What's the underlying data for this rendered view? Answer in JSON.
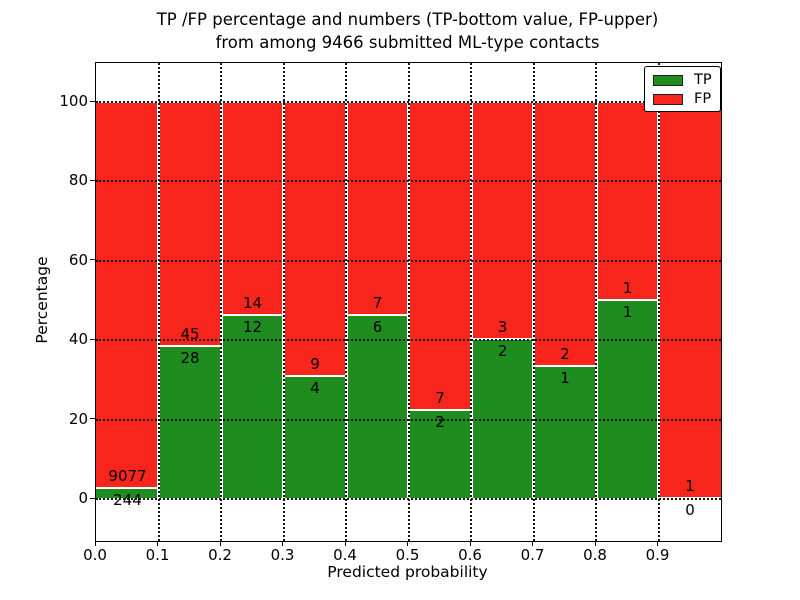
{
  "figure": {
    "title_line1": "TP /FP percentage and numbers (TP-bottom value, FP-upper)",
    "title_line2": "from among 9466 submitted ML-type contacts",
    "xlabel": "Predicted probability",
    "ylabel": "Percentage"
  },
  "legend": {
    "items": [
      {
        "label": "TP",
        "color": "#1e8c1e"
      },
      {
        "label": "FP",
        "color": "#f8251d"
      }
    ]
  },
  "colors": {
    "tp_green": "#1e8c1e",
    "fp_red": "#f8251d",
    "grid": "#000000",
    "background": "#ffffff"
  },
  "chart_data": {
    "type": "bar",
    "subtype": "stacked-percentage-histogram",
    "title": "TP /FP percentage and numbers (TP-bottom value, FP-upper) from among 9466 submitted ML-type contacts",
    "xlabel": "Predicted probability",
    "ylabel": "Percentage",
    "grid": "dotted",
    "legend_position": "upper-right",
    "xlim": [
      0.0,
      1.0
    ],
    "ylim": [
      -11,
      110
    ],
    "bin_width": 0.1,
    "x_tick_labels": [
      "0.0",
      "0.1",
      "0.2",
      "0.3",
      "0.4",
      "0.5",
      "0.6",
      "0.7",
      "0.8",
      "0.9"
    ],
    "y_ticks": [
      0,
      20,
      40,
      60,
      80,
      100
    ],
    "y_tick_labels": [
      "0",
      "20",
      "40",
      "60",
      "80",
      "100"
    ],
    "bin_ranges": [
      "0.0-0.1",
      "0.1-0.2",
      "0.2-0.3",
      "0.3-0.4",
      "0.4-0.5",
      "0.5-0.6",
      "0.6-0.7",
      "0.7-0.8",
      "0.8-0.9",
      "0.9-1.0"
    ],
    "series": [
      {
        "name": "TP",
        "color": "#1e8c1e",
        "counts": [
          244,
          28,
          12,
          4,
          6,
          2,
          2,
          1,
          1,
          0
        ]
      },
      {
        "name": "FP",
        "color": "#f8251d",
        "counts": [
          9077,
          45,
          14,
          9,
          7,
          7,
          3,
          2,
          1,
          1
        ]
      }
    ],
    "tp_percent_of_bin": [
      2.6,
      38.4,
      46.2,
      30.8,
      46.2,
      22.2,
      40.0,
      33.3,
      50.0,
      0.0
    ],
    "fp_percent_of_bin": [
      97.4,
      61.6,
      53.8,
      69.2,
      53.8,
      77.8,
      60.0,
      66.7,
      50.0,
      100.0
    ],
    "total_contacts": 9466
  }
}
